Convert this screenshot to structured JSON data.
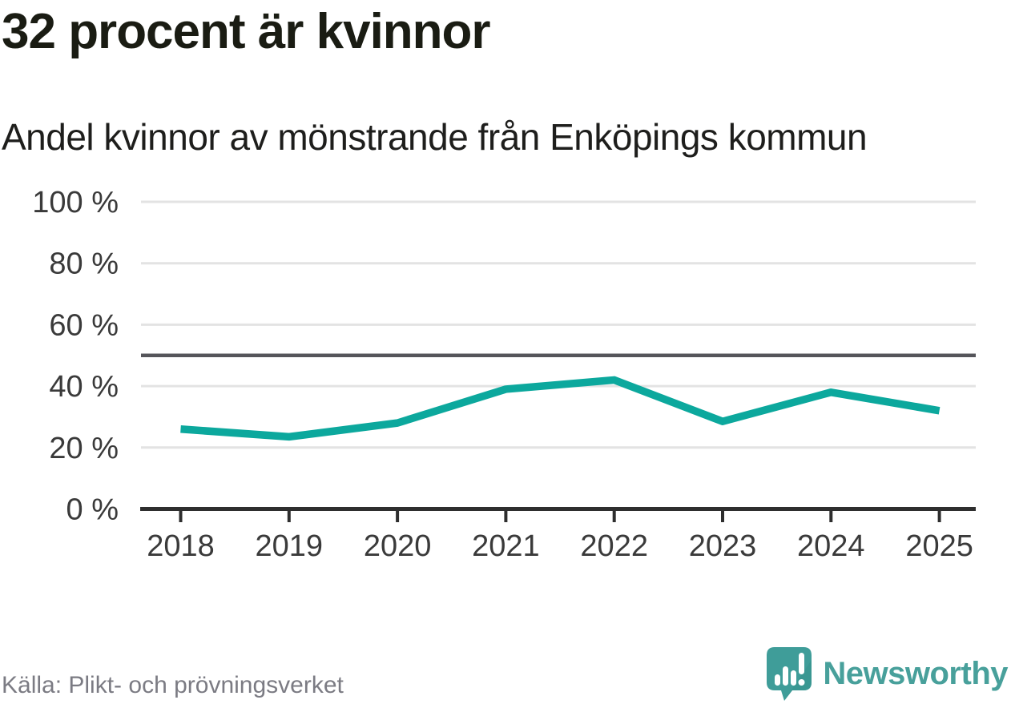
{
  "page": {
    "title": "32 procent är kvinnor",
    "subtitle": "Andel kvinnor av mönstrande från Enköpings kommun",
    "source": "Källa: Plikt- och prövningsverket",
    "brand": "Newsworthy"
  },
  "colors": {
    "line": "#0ca89d",
    "grid": "#e3e3e3",
    "reference_line": "#55555a",
    "axis": "#2e2e2e",
    "tick_label": "#3a3a3a",
    "title_text": "#1a1c13",
    "footer_text": "#7b7b83",
    "brand_teal": "#48a09b",
    "logo_icon_teal": "#3f9d99",
    "logo_icon_shade": "#37918d"
  },
  "chart_data": {
    "type": "line",
    "title": "32 procent är kvinnor",
    "subtitle": "Andel kvinnor av mönstrande från Enköpings kommun",
    "x": [
      "2018",
      "2019",
      "2020",
      "2021",
      "2022",
      "2023",
      "2024",
      "2025"
    ],
    "series": [
      {
        "name": "Andel kvinnor av mönstrande",
        "values": [
          26,
          23.5,
          28,
          39,
          42,
          28.5,
          38,
          32
        ]
      }
    ],
    "unit": "%",
    "ylim": [
      0,
      100
    ],
    "yticks": [
      0,
      20,
      40,
      60,
      80,
      100
    ],
    "ytick_suffix": " %",
    "reference_line": 50,
    "grid": "horizontal",
    "legend": "none",
    "source": "Källa: Plikt- och prövningsverket"
  }
}
